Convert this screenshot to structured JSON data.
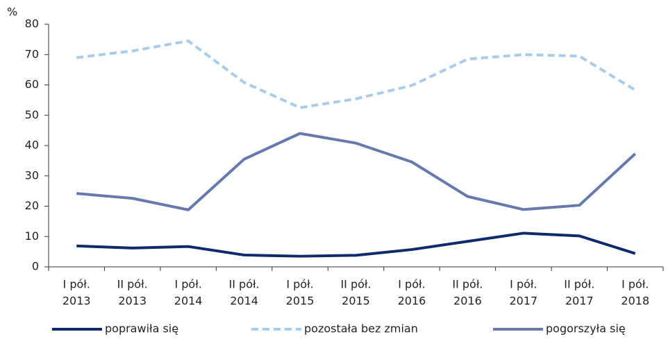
{
  "chart_data": {
    "type": "line",
    "y_label": "%",
    "categories": [
      [
        "I pół.",
        "2013"
      ],
      [
        "II pół.",
        "2013"
      ],
      [
        "I pół.",
        "2014"
      ],
      [
        "II pół.",
        "2014"
      ],
      [
        "I pół.",
        "2015"
      ],
      [
        "II pół.",
        "2015"
      ],
      [
        "I pół.",
        "2016"
      ],
      [
        "II pół.",
        "2016"
      ],
      [
        "I pół.",
        "2017"
      ],
      [
        "II pół.",
        "2017"
      ],
      [
        "I pół.",
        "2018"
      ]
    ],
    "series": [
      {
        "name": "poprawiła się",
        "color": "#0d2a6b",
        "dash": false,
        "values": [
          6.9,
          6.2,
          6.7,
          3.9,
          3.5,
          3.8,
          5.7,
          8.4,
          11.1,
          10.2,
          4.4
        ]
      },
      {
        "name": "pozostała bez zmian",
        "color": "#a9cce9",
        "dash": true,
        "values": [
          69,
          71.2,
          74.5,
          60.8,
          52.5,
          55.4,
          59.8,
          68.5,
          70,
          69.5,
          58.3
        ]
      },
      {
        "name": "pogorszyła się",
        "color": "#6778ad",
        "dash": false,
        "values": [
          24.2,
          22.6,
          18.8,
          35.5,
          44,
          40.8,
          34.6,
          23.2,
          18.9,
          20.3,
          37.3
        ]
      }
    ],
    "ylim": [
      0,
      80
    ],
    "yticks": [
      0,
      10,
      20,
      30,
      40,
      50,
      60,
      70,
      80
    ],
    "grid": false,
    "legend": "bottom"
  }
}
